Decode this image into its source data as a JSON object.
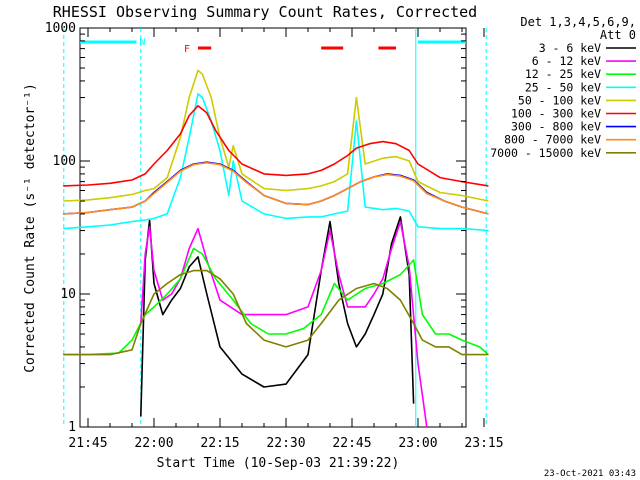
{
  "chart_data": {
    "type": "line",
    "title": "RHESSI Observing Summary Count Rates, Corrected",
    "xlabel": "Start Time (10-Sep-03 21:39:22)",
    "ylabel": "Corrected Count Rate (s⁻¹ detector⁻¹)",
    "yscale": "log",
    "ylim": [
      1,
      1000
    ],
    "xlim": [
      "21:39:22",
      "23:17:00"
    ],
    "x_ticks": [
      "21:45",
      "22:00",
      "22:15",
      "22:30",
      "22:45",
      "23:00",
      "23:15"
    ],
    "y_ticks": [
      "1",
      "10",
      "100",
      "1000"
    ],
    "footer": "23-Oct-2021 03:43",
    "legend_header": [
      "Det 1,3,4,5,6,9,",
      "Att 0"
    ],
    "legend_position": "right",
    "markers": {
      "night_bars": [
        {
          "start": "21:39:22",
          "end": "21:56:00"
        },
        {
          "start": "23:00:00",
          "end": "23:16:00"
        }
      ],
      "night_label": "N",
      "flare_bars": [
        {
          "start": "22:10",
          "end": "22:13"
        },
        {
          "start": "22:38",
          "end": "22:43"
        },
        {
          "start": "22:51",
          "end": "22:55"
        }
      ],
      "flare_label": "F",
      "dashed_lines": [
        "21:39:30",
        "21:57:00",
        "23:15:30"
      ],
      "solid_line": "22:59:30"
    },
    "series": [
      {
        "name": "3 - 6 keV",
        "color": "#000000",
        "x": [
          "21:57",
          "21:58",
          "21:59",
          "22:00",
          "22:02",
          "22:04",
          "22:06",
          "22:08",
          "22:10",
          "22:12",
          "22:15",
          "22:20",
          "22:25",
          "22:30",
          "22:35",
          "22:38",
          "22:40",
          "22:42",
          "22:44",
          "22:46",
          "22:48",
          "22:50",
          "22:52",
          "22:54",
          "22:56",
          "22:58",
          "22:59"
        ],
        "y": [
          1.2,
          18,
          36,
          12,
          7,
          9,
          11,
          16,
          19,
          10,
          4,
          2.5,
          2.0,
          2.1,
          3.5,
          15,
          35,
          12,
          6,
          4,
          5,
          7,
          10,
          24,
          38,
          14,
          1.5
        ]
      },
      {
        "name": "6 - 12 keV",
        "color": "#ff00ff",
        "x": [
          "21:57",
          "21:58",
          "21:59",
          "22:00",
          "22:02",
          "22:04",
          "22:06",
          "22:08",
          "22:10",
          "22:12",
          "22:15",
          "22:20",
          "22:25",
          "22:30",
          "22:35",
          "22:38",
          "22:40",
          "22:42",
          "22:44",
          "22:46",
          "22:48",
          "22:50",
          "22:52",
          "22:54",
          "22:56",
          "22:58",
          "23:00",
          "23:02"
        ],
        "y": [
          6,
          20,
          32,
          15,
          9,
          10,
          13,
          22,
          31,
          18,
          9,
          7,
          7,
          7,
          8,
          15,
          30,
          14,
          8,
          8,
          8,
          10,
          13,
          22,
          35,
          16,
          3,
          1
        ]
      },
      {
        "name": "12 - 25 keV",
        "color": "#00ff00",
        "x": [
          "21:39:22",
          "21:45",
          "21:52",
          "21:55",
          "21:58",
          "22:00",
          "22:03",
          "22:06",
          "22:09",
          "22:11",
          "22:14",
          "22:18",
          "22:22",
          "22:26",
          "22:30",
          "22:34",
          "22:38",
          "22:41",
          "22:44",
          "22:48",
          "22:52",
          "22:56",
          "22:59",
          "23:01",
          "23:04",
          "23:07",
          "23:10",
          "23:14",
          "23:16"
        ],
        "y": [
          3.5,
          3.5,
          3.6,
          4.5,
          7,
          8,
          10,
          13,
          22,
          20,
          13,
          9,
          6,
          5,
          5,
          5.5,
          7,
          12,
          9,
          11,
          12,
          14,
          18,
          7,
          5,
          5,
          4.5,
          4,
          3.5
        ]
      },
      {
        "name": "25 - 50 keV",
        "color": "#00ffff",
        "x": [
          "21:39:22",
          "21:45",
          "21:50",
          "21:55",
          "21:58",
          "22:00",
          "22:03",
          "22:06",
          "22:08",
          "22:10",
          "22:11",
          "22:13",
          "22:15",
          "22:17",
          "22:18",
          "22:20",
          "22:25",
          "22:30",
          "22:35",
          "22:38",
          "22:41",
          "22:44",
          "22:46",
          "22:48",
          "22:52",
          "22:55",
          "22:58",
          "23:00",
          "23:05",
          "23:10",
          "23:16"
        ],
        "y": [
          31,
          32,
          33,
          35,
          36,
          37,
          40,
          75,
          150,
          320,
          300,
          200,
          120,
          55,
          100,
          50,
          40,
          37,
          38,
          38,
          40,
          42,
          200,
          45,
          43,
          44,
          42,
          32,
          31,
          31,
          30
        ]
      },
      {
        "name": "50 - 100 keV",
        "color": "#cccc00",
        "x": [
          "21:39:22",
          "21:45",
          "21:50",
          "21:55",
          "21:58",
          "22:00",
          "22:03",
          "22:06",
          "22:08",
          "22:10",
          "22:11",
          "22:13",
          "22:15",
          "22:17",
          "22:18",
          "22:20",
          "22:25",
          "22:30",
          "22:35",
          "22:38",
          "22:41",
          "22:44",
          "22:46",
          "22:48",
          "22:52",
          "22:55",
          "22:58",
          "23:00",
          "23:05",
          "23:10",
          "23:16"
        ],
        "y": [
          50,
          51,
          53,
          56,
          60,
          62,
          75,
          150,
          300,
          480,
          450,
          300,
          150,
          90,
          130,
          80,
          62,
          60,
          62,
          65,
          70,
          80,
          300,
          95,
          105,
          108,
          100,
          70,
          58,
          55,
          50
        ]
      },
      {
        "name": "100 - 300 keV",
        "color": "#ff0000",
        "x": [
          "21:39:22",
          "21:45",
          "21:50",
          "21:55",
          "21:58",
          "22:00",
          "22:03",
          "22:06",
          "22:08",
          "22:10",
          "22:12",
          "22:14",
          "22:17",
          "22:20",
          "22:25",
          "22:30",
          "22:35",
          "22:38",
          "22:41",
          "22:44",
          "22:46",
          "22:49",
          "22:52",
          "22:55",
          "22:58",
          "23:00",
          "23:05",
          "23:10",
          "23:16"
        ],
        "y": [
          65,
          66,
          68,
          72,
          80,
          95,
          120,
          160,
          220,
          260,
          230,
          170,
          120,
          95,
          80,
          78,
          80,
          85,
          95,
          110,
          125,
          135,
          140,
          135,
          120,
          95,
          75,
          70,
          65
        ]
      },
      {
        "name": "300 - 800 keV",
        "color": "#0000ff",
        "x": [
          "21:39:22",
          "21:45",
          "21:50",
          "21:55",
          "21:58",
          "22:00",
          "22:03",
          "22:06",
          "22:09",
          "22:12",
          "22:15",
          "22:18",
          "22:21",
          "22:25",
          "22:30",
          "22:35",
          "22:38",
          "22:41",
          "22:44",
          "22:47",
          "22:50",
          "22:53",
          "22:56",
          "22:59",
          "23:02",
          "23:06",
          "23:10",
          "23:16"
        ],
        "y": [
          40,
          41,
          43,
          45,
          50,
          58,
          70,
          85,
          95,
          98,
          95,
          85,
          70,
          55,
          48,
          47,
          50,
          55,
          62,
          70,
          76,
          80,
          78,
          72,
          58,
          50,
          45,
          40
        ]
      },
      {
        "name": "800 - 7000 keV",
        "color": "#ff8c1a",
        "x": [
          "21:39:22",
          "21:45",
          "21:50",
          "21:55",
          "21:58",
          "22:00",
          "22:03",
          "22:06",
          "22:09",
          "22:12",
          "22:15",
          "22:18",
          "22:21",
          "22:25",
          "22:30",
          "22:35",
          "22:38",
          "22:41",
          "22:44",
          "22:47",
          "22:50",
          "22:53",
          "22:56",
          "22:59",
          "23:02",
          "23:06",
          "23:10",
          "23:16"
        ],
        "y": [
          40,
          41,
          43,
          45,
          50,
          57,
          69,
          84,
          94,
          97,
          94,
          84,
          69,
          55,
          48,
          47,
          50,
          55,
          62,
          70,
          76,
          79,
          77,
          71,
          57,
          50,
          45,
          40
        ]
      },
      {
        "name": "7000 - 15000 keV",
        "color": "#808000",
        "x": [
          "21:39:22",
          "21:45",
          "21:50",
          "21:55",
          "21:57",
          "22:00",
          "22:03",
          "22:06",
          "22:09",
          "22:12",
          "22:15",
          "22:18",
          "22:21",
          "22:25",
          "22:30",
          "22:35",
          "22:38",
          "22:42",
          "22:46",
          "22:50",
          "22:53",
          "22:56",
          "22:59",
          "23:01",
          "23:04",
          "23:07",
          "23:10",
          "23:14",
          "23:16"
        ],
        "y": [
          3.5,
          3.5,
          3.5,
          3.8,
          6,
          10,
          12,
          14,
          15,
          15,
          13,
          10,
          6,
          4.5,
          4,
          4.5,
          6,
          9,
          11,
          12,
          11,
          9,
          6,
          4.5,
          4,
          4,
          3.5,
          3.5,
          3.5
        ]
      }
    ]
  }
}
